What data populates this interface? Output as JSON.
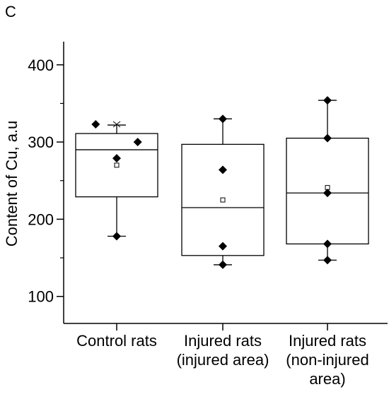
{
  "panel_label": "C",
  "chart_data": {
    "type": "box",
    "ylabel": "Content of Cu, a.u",
    "xlabel": "",
    "ylim": [
      65,
      430
    ],
    "yticks": [
      100,
      200,
      300,
      400
    ],
    "minor_yticks": [
      150,
      250,
      350
    ],
    "grid": false,
    "categories": [
      {
        "lines": [
          "Control rats"
        ]
      },
      {
        "lines": [
          "Injured rats",
          "(injured area)"
        ]
      },
      {
        "lines": [
          "Injured rats",
          "(non-injured",
          "area)"
        ]
      }
    ],
    "boxes": [
      {
        "q1": 229,
        "median": 290,
        "q3": 311,
        "whisker_low": 178,
        "whisker_high": 322,
        "mean": 270,
        "max_marker": 323,
        "points": [
          {
            "dx": -0.33,
            "y": 323
          },
          {
            "dx": 0.0,
            "y": 279
          },
          {
            "dx": 0.33,
            "y": 300
          },
          {
            "dx": 0.0,
            "y": 178
          }
        ]
      },
      {
        "q1": 153,
        "median": 215,
        "q3": 297,
        "whisker_low": 141,
        "whisker_high": 330,
        "mean": 225,
        "max_marker": null,
        "points": [
          {
            "dx": 0.0,
            "y": 330
          },
          {
            "dx": 0.0,
            "y": 264
          },
          {
            "dx": 0.0,
            "y": 165
          },
          {
            "dx": 0.0,
            "y": 141
          }
        ]
      },
      {
        "q1": 168,
        "median": 234,
        "q3": 305,
        "whisker_low": 147,
        "whisker_high": 354,
        "mean": 241,
        "max_marker": null,
        "points": [
          {
            "dx": 0.0,
            "y": 354
          },
          {
            "dx": 0.0,
            "y": 305
          },
          {
            "dx": 0.0,
            "y": 234
          },
          {
            "dx": 0.0,
            "y": 168
          },
          {
            "dx": 0.0,
            "y": 147
          }
        ]
      }
    ]
  }
}
